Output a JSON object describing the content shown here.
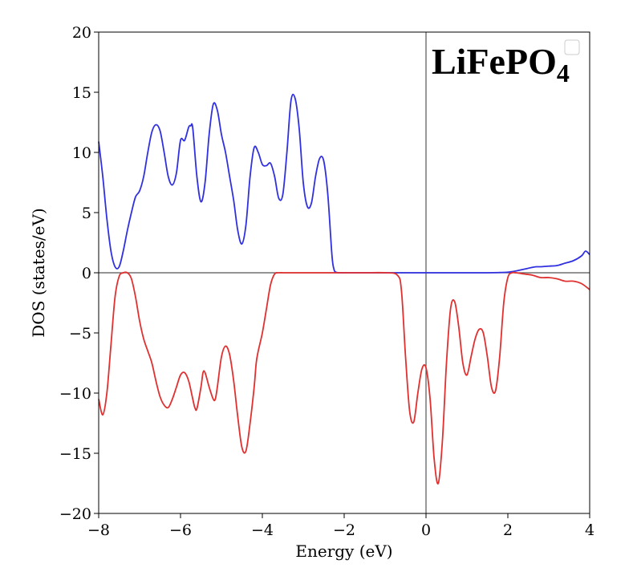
{
  "chart_data": {
    "type": "line",
    "title_label": {
      "text": "LiFePO",
      "subscript": "4",
      "placement": "top-right"
    },
    "xlabel": "Energy (eV)",
    "ylabel": "DOS (states/eV)",
    "xlim": [
      -8,
      4
    ],
    "ylim": [
      -20,
      20
    ],
    "xticks": [
      -8,
      -6,
      -4,
      -2,
      0,
      2,
      4
    ],
    "yticks": [
      -20,
      -15,
      -10,
      -5,
      0,
      5,
      10,
      15,
      20
    ],
    "xtick_labels": [
      "−8",
      "−6",
      "−4",
      "−2",
      "0",
      "2",
      "4"
    ],
    "ytick_labels": [
      "−20",
      "−15",
      "−10",
      "−5",
      "0",
      "5",
      "10",
      "15",
      "20"
    ],
    "grid": false,
    "reference_lines": {
      "horizontal_at": 0,
      "vertical_at": 0,
      "color": "#555555"
    },
    "legend": {
      "placement": "top-right",
      "entries": []
    },
    "series": [
      {
        "color": "#3030e0",
        "x": [
          -8.0,
          -7.9,
          -7.8,
          -7.7,
          -7.6,
          -7.5,
          -7.4,
          -7.3,
          -7.2,
          -7.1,
          -7.0,
          -6.9,
          -6.8,
          -6.7,
          -6.6,
          -6.5,
          -6.4,
          -6.3,
          -6.2,
          -6.1,
          -6.0,
          -5.9,
          -5.8,
          -5.75,
          -5.7,
          -5.6,
          -5.5,
          -5.4,
          -5.3,
          -5.2,
          -5.1,
          -5.0,
          -4.9,
          -4.8,
          -4.7,
          -4.6,
          -4.5,
          -4.4,
          -4.3,
          -4.2,
          -4.1,
          -4.0,
          -3.9,
          -3.8,
          -3.7,
          -3.6,
          -3.5,
          -3.4,
          -3.3,
          -3.2,
          -3.1,
          -3.0,
          -2.9,
          -2.8,
          -2.7,
          -2.6,
          -2.5,
          -2.4,
          -2.3,
          -2.25,
          -2.2,
          -2.1,
          -2.0,
          -1.9,
          -1.8,
          -1.7,
          -1.6,
          -1.55,
          -1.5,
          -1.4,
          -1.3,
          -1.2,
          -1.1,
          -1.0,
          -0.8,
          -0.5,
          0.0,
          0.5,
          1.0,
          1.5,
          1.8,
          2.0,
          2.2,
          2.4,
          2.6,
          2.7,
          2.8,
          3.0,
          3.2,
          3.4,
          3.6,
          3.8,
          3.9,
          4.0
        ],
        "y": [
          10.9,
          8.0,
          4.5,
          1.8,
          0.5,
          0.5,
          1.8,
          3.5,
          5.0,
          6.3,
          6.8,
          8.0,
          10.0,
          11.7,
          12.3,
          11.8,
          10.0,
          8.0,
          7.3,
          8.3,
          11.0,
          11.0,
          12.1,
          12.2,
          12.0,
          8.0,
          5.9,
          7.5,
          11.5,
          14.0,
          13.5,
          11.5,
          10.0,
          8.0,
          6.0,
          3.5,
          2.4,
          4.0,
          8.0,
          10.4,
          10.0,
          9.0,
          8.9,
          9.1,
          8.0,
          6.2,
          6.5,
          10.0,
          14.3,
          14.5,
          12.0,
          7.5,
          5.5,
          5.8,
          8.0,
          9.5,
          9.3,
          6.5,
          1.5,
          0.3,
          0.05,
          0.0,
          0.0,
          0.0,
          0.0,
          0.0,
          0.0,
          0.0,
          0.0,
          0.0,
          0.0,
          0.0,
          0.0,
          0.0,
          0.0,
          0.0,
          0.0,
          0.0,
          0.0,
          0.0,
          0.02,
          0.05,
          0.15,
          0.3,
          0.45,
          0.5,
          0.5,
          0.55,
          0.6,
          0.8,
          1.0,
          1.4,
          1.8,
          1.5
        ]
      },
      {
        "color": "#e03030",
        "x": [
          -8.0,
          -7.9,
          -7.8,
          -7.7,
          -7.6,
          -7.5,
          -7.4,
          -7.3,
          -7.2,
          -7.1,
          -7.0,
          -6.9,
          -6.8,
          -6.7,
          -6.6,
          -6.5,
          -6.4,
          -6.3,
          -6.2,
          -6.1,
          -6.0,
          -5.9,
          -5.8,
          -5.7,
          -5.65,
          -5.6,
          -5.5,
          -5.45,
          -5.4,
          -5.3,
          -5.2,
          -5.15,
          -5.1,
          -5.0,
          -4.9,
          -4.8,
          -4.7,
          -4.6,
          -4.5,
          -4.4,
          -4.3,
          -4.2,
          -4.15,
          -4.1,
          -4.0,
          -3.9,
          -3.8,
          -3.7,
          -3.6,
          -3.5,
          -3.4,
          -3.3,
          -3.2,
          -3.0,
          -2.5,
          -2.0,
          -1.5,
          -1.0,
          -0.7,
          -0.6,
          -0.5,
          -0.4,
          -0.3,
          -0.2,
          -0.1,
          0.0,
          0.1,
          0.2,
          0.3,
          0.4,
          0.5,
          0.6,
          0.7,
          0.8,
          0.9,
          1.0,
          1.1,
          1.2,
          1.3,
          1.4,
          1.5,
          1.6,
          1.7,
          1.8,
          1.9,
          2.0,
          2.1,
          2.2,
          2.4,
          2.6,
          2.8,
          3.0,
          3.2,
          3.4,
          3.6,
          3.8,
          4.0
        ],
        "y": [
          -10.5,
          -11.8,
          -10.0,
          -6.0,
          -2.0,
          -0.3,
          0.0,
          0.0,
          -0.5,
          -2.0,
          -4.0,
          -5.5,
          -6.5,
          -7.5,
          -9.0,
          -10.3,
          -11.0,
          -11.2,
          -10.5,
          -9.5,
          -8.5,
          -8.3,
          -9.0,
          -10.5,
          -11.2,
          -11.3,
          -9.5,
          -8.3,
          -8.3,
          -9.5,
          -10.5,
          -10.5,
          -9.5,
          -7.0,
          -6.1,
          -6.8,
          -9.0,
          -12.0,
          -14.5,
          -14.8,
          -12.5,
          -9.5,
          -7.5,
          -6.5,
          -5.0,
          -3.0,
          -1.0,
          -0.1,
          0.0,
          0.0,
          0.0,
          0.0,
          0.0,
          0.0,
          0.0,
          0.0,
          0.0,
          0.0,
          -0.2,
          -1.5,
          -7.0,
          -11.5,
          -12.4,
          -10.0,
          -8.0,
          -7.9,
          -10.5,
          -15.5,
          -17.5,
          -14.0,
          -7.5,
          -3.0,
          -2.4,
          -4.5,
          -7.5,
          -8.5,
          -7.0,
          -5.5,
          -4.7,
          -5.0,
          -7.0,
          -9.5,
          -9.8,
          -7.0,
          -2.5,
          -0.4,
          0.0,
          0.0,
          -0.1,
          -0.2,
          -0.4,
          -0.4,
          -0.5,
          -0.7,
          -0.7,
          -0.9,
          -1.4
        ]
      }
    ]
  }
}
